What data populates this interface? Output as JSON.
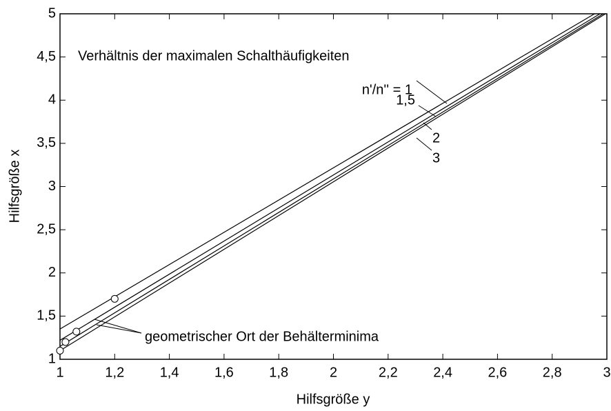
{
  "chart_data": {
    "type": "line",
    "xlabel": "Hilfsgröße y",
    "ylabel": "Hilfsgröße x",
    "legend_title": "Verhältnis der maximalen Schalthäufigkeiten",
    "annotation": "geometrischer Ort der Behälterminima",
    "xlim": [
      1,
      3
    ],
    "ylim": [
      1,
      5
    ],
    "xticks": [
      1,
      {
        "value": 1.2,
        "label": "1,2"
      },
      {
        "value": 1.4,
        "label": "1,4"
      },
      {
        "value": 1.6,
        "label": "1,6"
      },
      {
        "value": 1.8,
        "label": "1,8"
      },
      2,
      {
        "value": 2.2,
        "label": "2,2"
      },
      {
        "value": 2.4,
        "label": "2,4"
      },
      {
        "value": 2.6,
        "label": "2,6"
      },
      {
        "value": 2.8,
        "label": "2,8"
      },
      3
    ],
    "yticks": [
      1,
      {
        "value": 1.5,
        "label": "1,5"
      },
      2,
      {
        "value": 2.5,
        "label": "2,5"
      },
      3,
      {
        "value": 3.5,
        "label": "3,5"
      },
      4,
      {
        "value": 4.5,
        "label": "4,5"
      },
      5
    ],
    "series": [
      {
        "name": "n'/n'' = 1",
        "color": "#000000",
        "x": [
          1,
          2.955
        ],
        "values": [
          1.35,
          5
        ]
      },
      {
        "name": "1,5",
        "color": "#000000",
        "x": [
          1,
          2.975
        ],
        "values": [
          1.22,
          5
        ]
      },
      {
        "name": "2",
        "color": "#000000",
        "x": [
          1,
          2.987
        ],
        "values": [
          1.15,
          5
        ]
      },
      {
        "name": "3",
        "color": "#000000",
        "x": [
          1,
          2.995
        ],
        "values": [
          1.1,
          5
        ]
      }
    ],
    "minima": {
      "x": [
        1.0,
        1.02,
        1.06,
        1.2
      ],
      "values": [
        1.1,
        1.2,
        1.32,
        1.7
      ]
    }
  }
}
